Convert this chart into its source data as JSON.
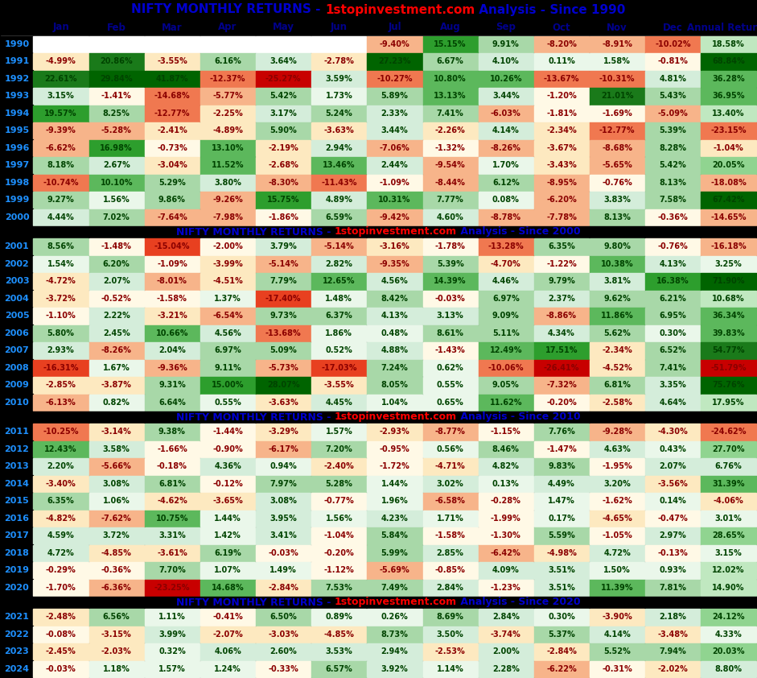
{
  "columns": [
    "Jan",
    "Feb",
    "Mar",
    "Apr",
    "May",
    "Jun",
    "Jul",
    "Aug",
    "Sep",
    "Oct",
    "Nov",
    "Dec",
    "Annual Returns"
  ],
  "years": [
    1990,
    1991,
    1992,
    1993,
    1994,
    1995,
    1996,
    1997,
    1998,
    1999,
    2000,
    2001,
    2002,
    2003,
    2004,
    2005,
    2006,
    2007,
    2008,
    2009,
    2010,
    2011,
    2012,
    2013,
    2014,
    2015,
    2016,
    2017,
    2018,
    2019,
    2020,
    2021,
    2022,
    2023,
    2024
  ],
  "section_before": {
    "2001": "NIFTY MONTHLY RETURNS - 1stopinvestment.com Analysis - Since 2000",
    "2011": "NIFTY MONTHLY RETURNS - 1stopinvestment.com Analysis - Since 2010",
    "2021": "NIFTY MONTHLY RETURNS - 1stopinvestment.com Analysis - Since 2020"
  },
  "data": {
    "1990": [
      null,
      null,
      null,
      null,
      null,
      null,
      -9.4,
      15.15,
      9.91,
      -8.2,
      -8.91,
      -10.02,
      18.58
    ],
    "1991": [
      -4.99,
      20.86,
      -3.55,
      6.16,
      3.64,
      -2.78,
      27.23,
      6.67,
      4.1,
      0.11,
      1.58,
      -0.81,
      68.84
    ],
    "1992": [
      22.61,
      29.84,
      41.87,
      -12.37,
      -25.27,
      3.59,
      -10.27,
      10.8,
      10.26,
      -13.67,
      -10.31,
      4.81,
      36.28
    ],
    "1993": [
      3.15,
      -1.41,
      -14.68,
      -5.77,
      5.42,
      1.73,
      5.89,
      13.13,
      3.44,
      -1.2,
      21.01,
      5.43,
      36.95
    ],
    "1994": [
      19.57,
      8.25,
      -12.77,
      -2.25,
      3.17,
      5.24,
      2.33,
      7.41,
      -6.03,
      -1.81,
      -1.69,
      -5.09,
      13.4
    ],
    "1995": [
      -9.39,
      -5.28,
      -2.41,
      -4.89,
      5.9,
      -3.63,
      3.44,
      -2.26,
      4.14,
      -2.34,
      -12.77,
      5.39,
      -23.15
    ],
    "1996": [
      -6.62,
      16.98,
      -0.73,
      13.1,
      -2.19,
      2.94,
      -7.06,
      -1.32,
      -8.26,
      -3.67,
      -8.68,
      8.28,
      -1.04
    ],
    "1997": [
      8.18,
      2.67,
      -3.04,
      11.52,
      -2.68,
      13.46,
      2.44,
      -9.54,
      1.7,
      -3.43,
      -5.65,
      5.42,
      20.05
    ],
    "1998": [
      -10.74,
      10.1,
      5.29,
      3.8,
      -8.3,
      -11.43,
      -1.09,
      -8.44,
      6.12,
      -8.95,
      -0.76,
      8.13,
      -18.08
    ],
    "1999": [
      9.27,
      1.56,
      9.86,
      -9.26,
      15.75,
      4.89,
      10.31,
      7.77,
      0.08,
      -6.2,
      3.83,
      7.58,
      67.42
    ],
    "2000": [
      4.44,
      7.02,
      -7.64,
      -7.98,
      -1.86,
      6.59,
      -9.42,
      4.6,
      -8.78,
      -7.78,
      8.13,
      -0.36,
      -14.65
    ],
    "2001": [
      8.56,
      -1.48,
      -15.04,
      -2.0,
      3.79,
      -5.14,
      -3.16,
      -1.78,
      -13.28,
      6.35,
      9.8,
      -0.76,
      -16.18
    ],
    "2002": [
      1.54,
      6.2,
      -1.09,
      -3.99,
      -5.14,
      2.82,
      -9.35,
      5.39,
      -4.7,
      -1.22,
      10.38,
      4.13,
      3.25
    ],
    "2003": [
      -4.72,
      2.07,
      -8.01,
      -4.51,
      7.79,
      12.65,
      4.56,
      14.39,
      4.46,
      9.79,
      3.81,
      16.38,
      71.9
    ],
    "2004": [
      -3.72,
      -0.52,
      -1.58,
      1.37,
      -17.4,
      1.48,
      8.42,
      -0.03,
      6.97,
      2.37,
      9.62,
      6.21,
      10.68
    ],
    "2005": [
      -1.1,
      2.22,
      -3.21,
      -6.54,
      9.73,
      6.37,
      4.13,
      3.13,
      9.09,
      -8.86,
      11.86,
      6.95,
      36.34
    ],
    "2006": [
      5.8,
      2.45,
      10.66,
      4.56,
      -13.68,
      1.86,
      0.48,
      8.61,
      5.11,
      4.34,
      5.62,
      0.3,
      39.83
    ],
    "2007": [
      2.93,
      -8.26,
      2.04,
      6.97,
      5.09,
      0.52,
      4.88,
      -1.43,
      12.49,
      17.51,
      -2.34,
      6.52,
      54.77
    ],
    "2008": [
      -16.31,
      1.67,
      -9.36,
      9.11,
      -5.73,
      -17.03,
      7.24,
      0.62,
      -10.06,
      -26.41,
      -4.52,
      7.41,
      -51.79
    ],
    "2009": [
      -2.85,
      -3.87,
      9.31,
      15.0,
      28.07,
      -3.55,
      8.05,
      0.55,
      9.05,
      -7.32,
      6.81,
      3.35,
      75.76
    ],
    "2010": [
      -6.13,
      0.82,
      6.64,
      0.55,
      -3.63,
      4.45,
      1.04,
      0.65,
      11.62,
      -0.2,
      -2.58,
      4.64,
      17.95
    ],
    "2011": [
      -10.25,
      -3.14,
      9.38,
      -1.44,
      -3.29,
      1.57,
      -2.93,
      -8.77,
      -1.15,
      7.76,
      -9.28,
      -4.3,
      -24.62
    ],
    "2012": [
      12.43,
      3.58,
      -1.66,
      -0.9,
      -6.17,
      7.2,
      -0.95,
      0.56,
      8.46,
      -1.47,
      4.63,
      0.43,
      27.7
    ],
    "2013": [
      2.2,
      -5.66,
      -0.18,
      4.36,
      0.94,
      -2.4,
      -1.72,
      -4.71,
      4.82,
      9.83,
      -1.95,
      2.07,
      6.76
    ],
    "2014": [
      -3.4,
      3.08,
      6.81,
      -0.12,
      7.97,
      5.28,
      1.44,
      3.02,
      0.13,
      4.49,
      3.2,
      -3.56,
      31.39
    ],
    "2015": [
      6.35,
      1.06,
      -4.62,
      -3.65,
      3.08,
      -0.77,
      1.96,
      -6.58,
      -0.28,
      1.47,
      -1.62,
      0.14,
      -4.06
    ],
    "2016": [
      -4.82,
      -7.62,
      10.75,
      1.44,
      3.95,
      1.56,
      4.23,
      1.71,
      -1.99,
      0.17,
      -4.65,
      -0.47,
      3.01
    ],
    "2017": [
      4.59,
      3.72,
      3.31,
      1.42,
      3.41,
      -1.04,
      5.84,
      -1.58,
      -1.3,
      5.59,
      -1.05,
      2.97,
      28.65
    ],
    "2018": [
      4.72,
      -4.85,
      -3.61,
      6.19,
      -0.03,
      -0.2,
      5.99,
      2.85,
      -6.42,
      -4.98,
      4.72,
      -0.13,
      3.15
    ],
    "2019": [
      -0.29,
      -0.36,
      7.7,
      1.07,
      1.49,
      -1.12,
      -5.69,
      -0.85,
      4.09,
      3.51,
      1.5,
      0.93,
      12.02
    ],
    "2020": [
      -1.7,
      -6.36,
      -23.25,
      14.68,
      -2.84,
      7.53,
      7.49,
      2.84,
      -1.23,
      3.51,
      11.39,
      7.81,
      14.9
    ],
    "2021": [
      -2.48,
      6.56,
      1.11,
      -0.41,
      6.5,
      0.89,
      0.26,
      8.69,
      2.84,
      0.3,
      -3.9,
      2.18,
      24.12
    ],
    "2022": [
      -0.08,
      -3.15,
      3.99,
      -2.07,
      -3.03,
      -4.85,
      8.73,
      3.5,
      -3.74,
      5.37,
      4.14,
      -3.48,
      4.33
    ],
    "2023": [
      -2.45,
      -2.03,
      0.32,
      4.06,
      2.6,
      3.53,
      2.94,
      -2.53,
      2.0,
      -2.84,
      5.52,
      7.94,
      20.03
    ],
    "2024": [
      -0.03,
      1.18,
      1.57,
      1.24,
      -0.33,
      6.57,
      3.92,
      1.14,
      2.28,
      -6.22,
      -0.31,
      -2.02,
      8.8
    ]
  }
}
